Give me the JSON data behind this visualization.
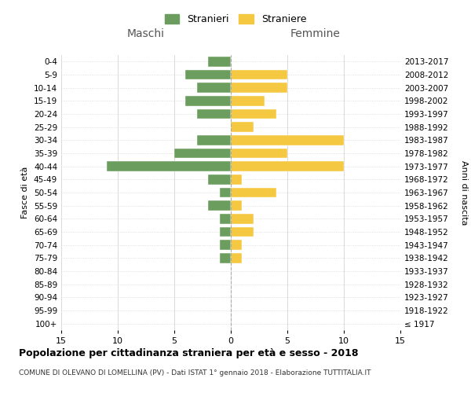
{
  "age_groups": [
    "100+",
    "95-99",
    "90-94",
    "85-89",
    "80-84",
    "75-79",
    "70-74",
    "65-69",
    "60-64",
    "55-59",
    "50-54",
    "45-49",
    "40-44",
    "35-39",
    "30-34",
    "25-29",
    "20-24",
    "15-19",
    "10-14",
    "5-9",
    "0-4"
  ],
  "birth_years": [
    "≤ 1917",
    "1918-1922",
    "1923-1927",
    "1928-1932",
    "1933-1937",
    "1938-1942",
    "1943-1947",
    "1948-1952",
    "1953-1957",
    "1958-1962",
    "1963-1967",
    "1968-1972",
    "1973-1977",
    "1978-1982",
    "1983-1987",
    "1988-1992",
    "1993-1997",
    "1998-2002",
    "2003-2007",
    "2008-2012",
    "2013-2017"
  ],
  "males": [
    0,
    0,
    0,
    0,
    0,
    1,
    1,
    1,
    1,
    2,
    1,
    2,
    11,
    5,
    3,
    0,
    3,
    4,
    3,
    4,
    2
  ],
  "females": [
    0,
    0,
    0,
    0,
    0,
    1,
    1,
    2,
    2,
    1,
    4,
    1,
    10,
    5,
    10,
    2,
    4,
    3,
    5,
    5,
    0
  ],
  "male_color": "#6B9E5E",
  "female_color": "#F5C842",
  "background_color": "#FFFFFF",
  "grid_color": "#CCCCCC",
  "center_line_color": "#AAAAAA",
  "title": "Popolazione per cittadinanza straniera per età e sesso - 2018",
  "subtitle": "COMUNE DI OLEVANO DI LOMELLINA (PV) - Dati ISTAT 1° gennaio 2018 - Elaborazione TUTTITALIA.IT",
  "xlabel_left": "Maschi",
  "xlabel_right": "Femmine",
  "ylabel_left": "Fasce di età",
  "ylabel_right": "Anni di nascita",
  "legend_male": "Stranieri",
  "legend_female": "Straniere",
  "xlim": 15
}
